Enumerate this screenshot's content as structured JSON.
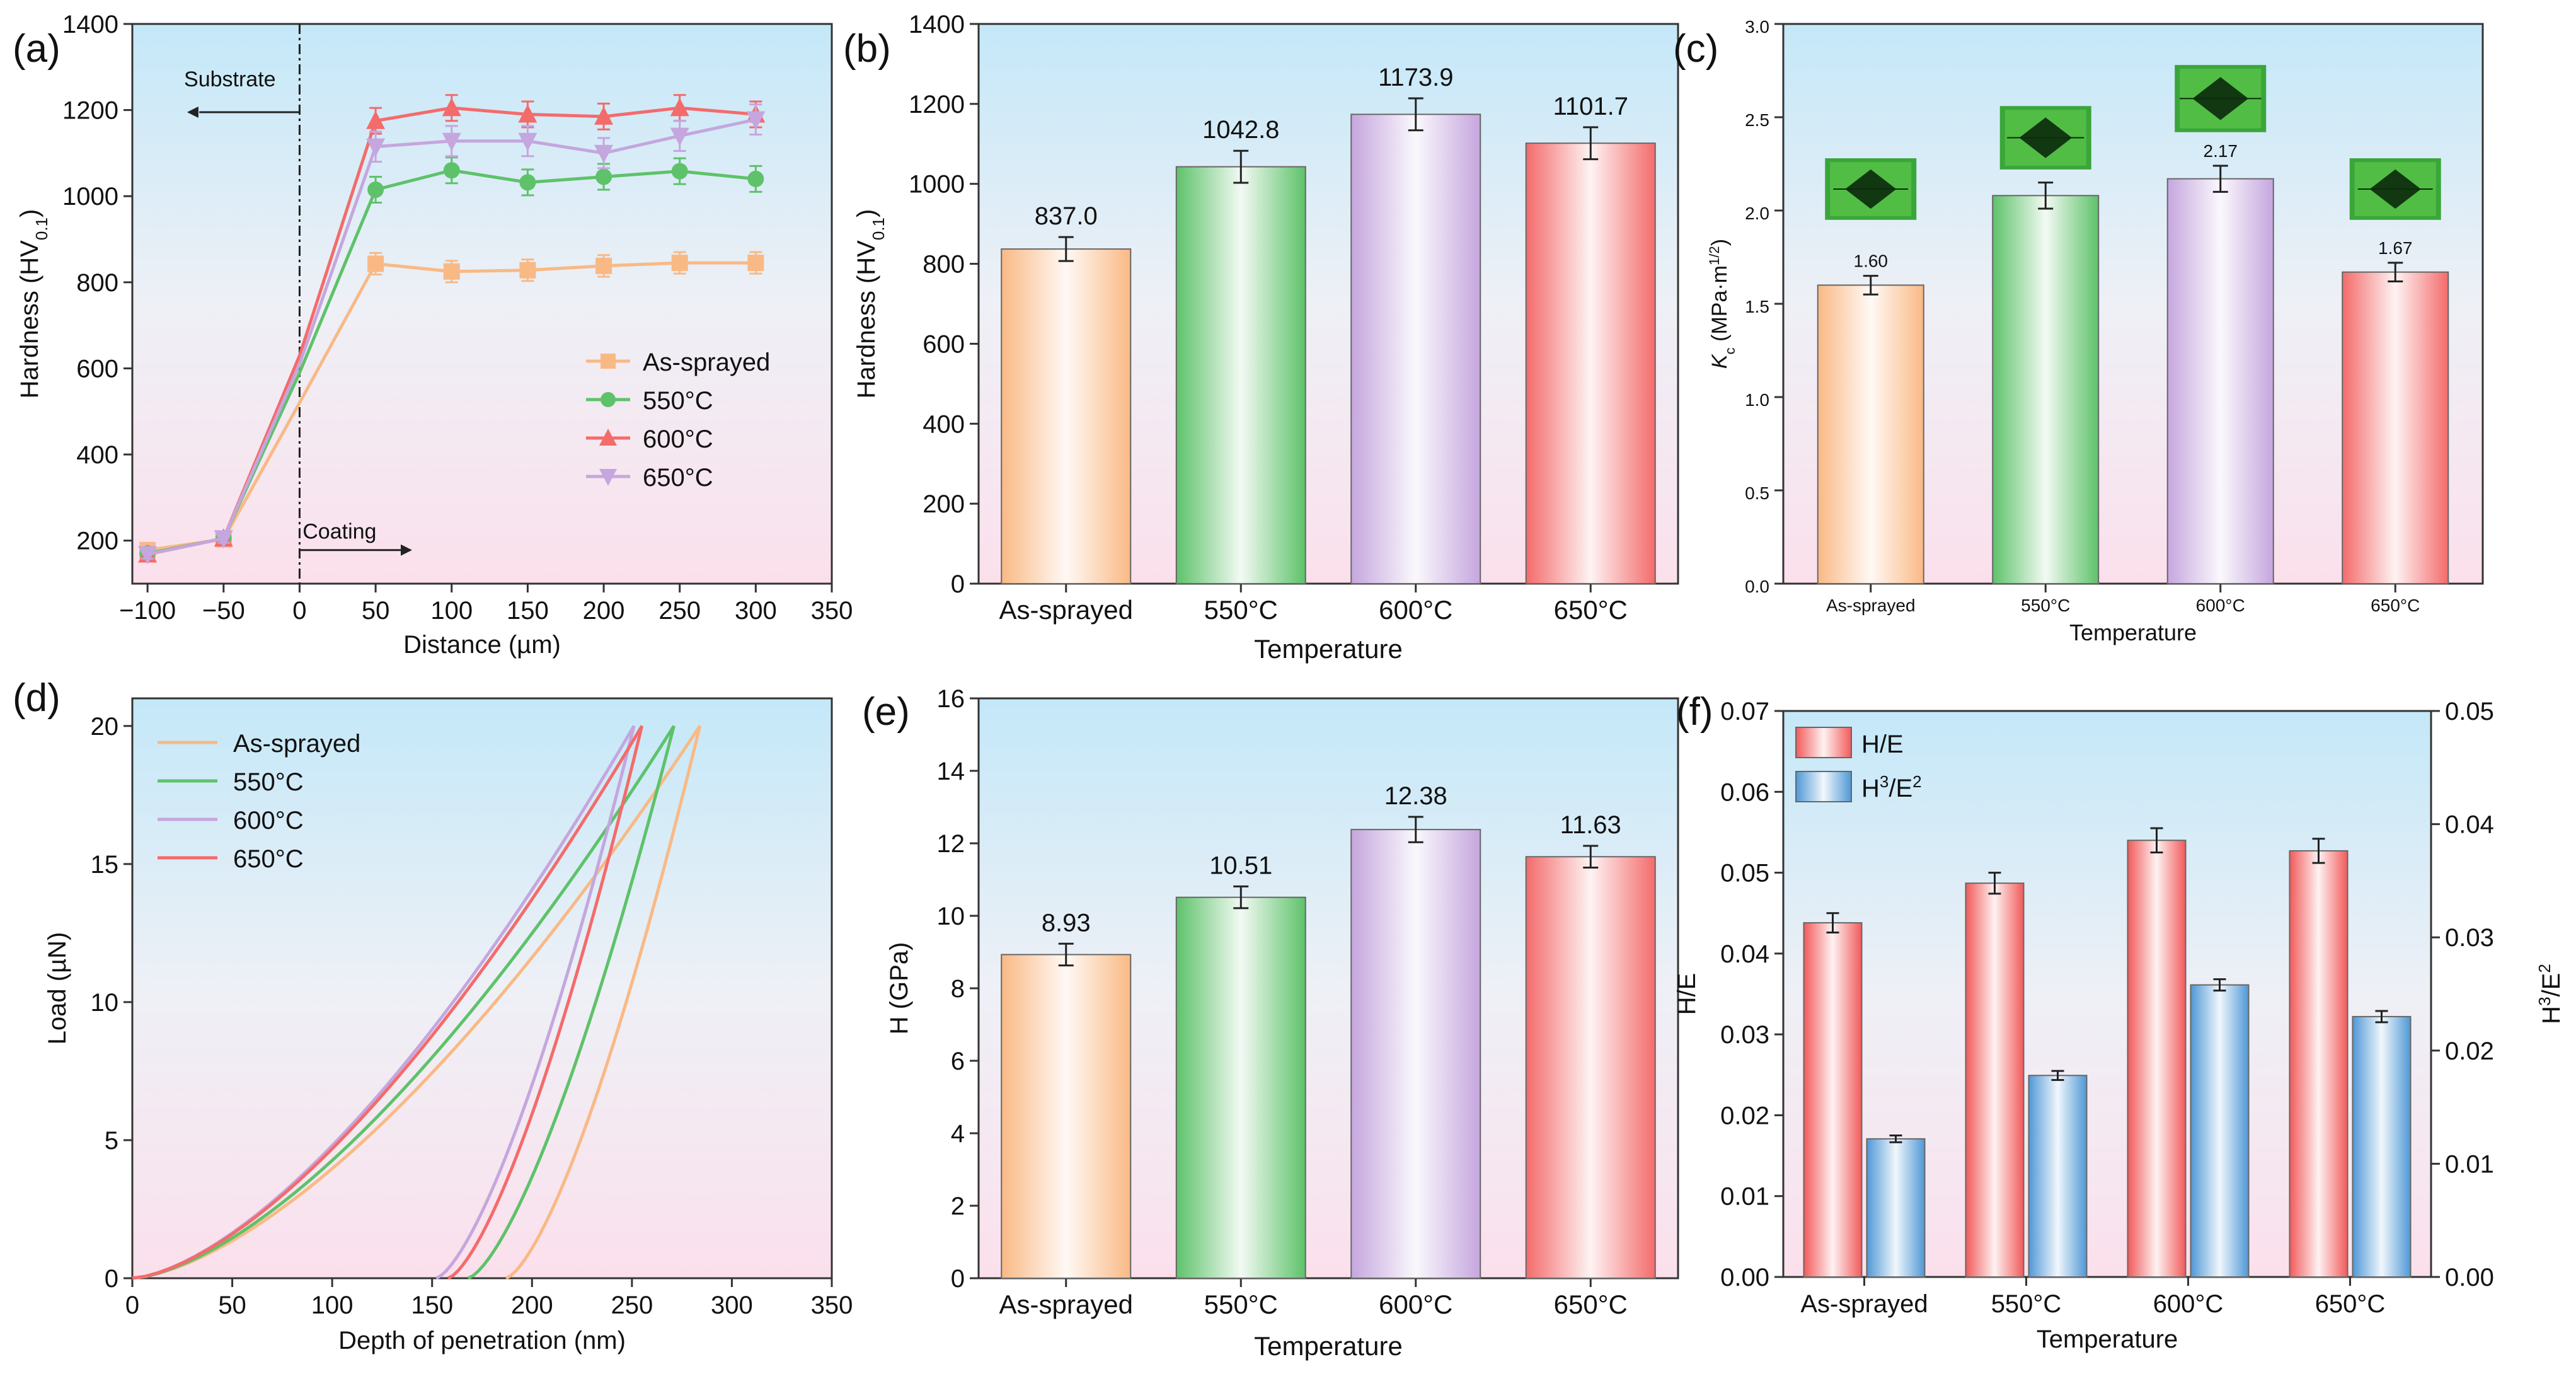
{
  "chart_data": [
    {
      "panel": "(a)",
      "type": "line",
      "xlabel": "Distance (µm)",
      "ylabel": "Hardness (HV0.1)",
      "ylabel_main": "Hardness (HV",
      "ylabel_sub": "0.1",
      "ylabel_tail": ")",
      "xlim": [
        -110,
        350
      ],
      "ylim": [
        100,
        1400
      ],
      "xticks": [
        -100,
        -50,
        0,
        50,
        100,
        150,
        200,
        250,
        300,
        350
      ],
      "xtick_labels": [
        "−100",
        "−50",
        "0",
        "50",
        "100",
        "150",
        "200",
        "250",
        "300",
        "350"
      ],
      "yticks": [
        200,
        400,
        600,
        800,
        1000,
        1200,
        1400
      ],
      "annotations": {
        "substrate": "Substrate",
        "coating": "Coating"
      },
      "x": [
        -100,
        -50,
        0,
        50,
        100,
        150,
        200,
        250,
        300
      ],
      "series": [
        {
          "name": "As-sprayed",
          "color": "#f9b985",
          "marker": "square",
          "values": [
            178,
            203,
            520,
            843,
            825,
            828,
            838,
            845,
            845
          ],
          "errors": [
            10,
            10,
            0,
            25,
            25,
            25,
            25,
            25,
            25
          ]
        },
        {
          "name": "550°C",
          "color": "#5ec26a",
          "marker": "circle",
          "values": [
            170,
            205,
            590,
            1015,
            1060,
            1032,
            1045,
            1058,
            1040
          ],
          "errors": [
            10,
            10,
            0,
            30,
            30,
            30,
            30,
            30,
            30
          ]
        },
        {
          "name": "600°C",
          "color": "#f46b6b",
          "marker": "triangle-up",
          "values": [
            168,
            205,
            630,
            1175,
            1205,
            1190,
            1185,
            1205,
            1190
          ],
          "errors": [
            10,
            10,
            0,
            30,
            30,
            30,
            30,
            30,
            30
          ]
        },
        {
          "name": "650°C",
          "color": "#c5a6de",
          "marker": "triangle-down",
          "values": [
            168,
            205,
            610,
            1115,
            1128,
            1128,
            1100,
            1140,
            1178
          ],
          "errors": [
            10,
            10,
            0,
            35,
            35,
            35,
            35,
            35,
            35
          ]
        }
      ]
    },
    {
      "panel": "(b)",
      "type": "bar",
      "xlabel": "Temperature",
      "ylabel": "Hardness (HV0.1)",
      "ylabel_main": "Hardness (HV",
      "ylabel_sub": "0.1",
      "ylabel_tail": ")",
      "categories": [
        "As-sprayed",
        "550°C",
        "600°C",
        "650°C"
      ],
      "values": [
        837.0,
        1042.8,
        1173.9,
        1101.7
      ],
      "value_labels": [
        "837.0",
        "1042.8",
        "1173.9",
        "1101.7"
      ],
      "errors": [
        30,
        40,
        40,
        40
      ],
      "ylim": [
        0,
        1400
      ],
      "yticks": [
        0,
        200,
        400,
        600,
        800,
        1000,
        1200,
        1400
      ]
    },
    {
      "panel": "(c)",
      "type": "bar",
      "xlabel": "Temperature",
      "ylabel": "Kc (MPa·m1/2)",
      "ylabel_k": "K",
      "ylabel_ksub": "c",
      "ylabel_unit": " (MPa·m",
      "ylabel_sup": "1/2",
      "ylabel_tail": ")",
      "categories": [
        "As-sprayed",
        "550°C",
        "600°C",
        "650°C"
      ],
      "values": [
        1.6,
        2.08,
        2.17,
        1.67
      ],
      "value_labels": [
        "1.60",
        "",
        "2.17",
        "1.67"
      ],
      "errors": [
        0.05,
        0.07,
        0.07,
        0.05
      ],
      "ylim": [
        0,
        3.0
      ],
      "yticks": [
        0.0,
        0.5,
        1.0,
        1.5,
        2.0,
        2.5,
        3.0
      ],
      "ytick_labels": [
        "0.0",
        "0.5",
        "1.0",
        "1.5",
        "2.0",
        "2.5",
        "3.0"
      ]
    },
    {
      "panel": "(d)",
      "type": "line",
      "xlabel": "Depth of penetration (nm)",
      "ylabel": "Load (µN)",
      "xlim": [
        0,
        350
      ],
      "ylim": [
        0,
        21
      ],
      "xticks": [
        0,
        50,
        100,
        150,
        200,
        250,
        300,
        350
      ],
      "yticks": [
        0,
        5,
        10,
        15,
        20
      ],
      "series": [
        {
          "name": "As-sprayed",
          "color": "#f9b985",
          "peak_depth": 284,
          "peak_load": 20,
          "residual_depth": 187
        },
        {
          "name": "550°C",
          "color": "#5ec26a",
          "peak_depth": 271,
          "peak_load": 20,
          "residual_depth": 168
        },
        {
          "name": "600°C",
          "color": "#c5a6de",
          "peak_depth": 251,
          "peak_load": 20,
          "residual_depth": 152
        },
        {
          "name": "650°C",
          "color": "#f46b6b",
          "peak_depth": 255,
          "peak_load": 20,
          "residual_depth": 158
        }
      ]
    },
    {
      "panel": "(e)",
      "type": "bar",
      "xlabel": "Temperature",
      "ylabel": "H (GPa)",
      "categories": [
        "As-sprayed",
        "550°C",
        "600°C",
        "650°C"
      ],
      "values": [
        8.93,
        10.51,
        12.38,
        11.63
      ],
      "value_labels": [
        "8.93",
        "10.51",
        "12.38",
        "11.63"
      ],
      "errors": [
        0.3,
        0.3,
        0.35,
        0.3
      ],
      "ylim": [
        0,
        16
      ],
      "yticks": [
        0,
        2,
        4,
        6,
        8,
        10,
        12,
        14,
        16
      ]
    },
    {
      "panel": "(f)",
      "type": "bar",
      "xlabel": "Temperature",
      "ylabel": "H/E",
      "ylabel_right": "H3/E2",
      "categories": [
        "As-sprayed",
        "550°C",
        "600°C",
        "650°C"
      ],
      "ylim": [
        0,
        0.07
      ],
      "yticks": [
        0.0,
        0.01,
        0.02,
        0.03,
        0.04,
        0.05,
        0.06,
        0.07
      ],
      "ytick_labels": [
        "0.00",
        "0.01",
        "0.02",
        "0.03",
        "0.04",
        "0.05",
        "0.06",
        "0.07"
      ],
      "ylim_right": [
        0,
        0.05
      ],
      "yticks_right": [
        0.0,
        0.01,
        0.02,
        0.03,
        0.04,
        0.05
      ],
      "ytick_labels_right": [
        "0.00",
        "0.01",
        "0.02",
        "0.03",
        "0.04",
        "0.05"
      ],
      "series": [
        {
          "name": "H/E",
          "axis": "left",
          "color": "#f25a5a",
          "values": [
            0.0438,
            0.0487,
            0.054,
            0.0527
          ],
          "errors": [
            0.0012,
            0.0013,
            0.0015,
            0.0015
          ]
        },
        {
          "name": "H3/E2",
          "axis": "right",
          "color": "#4f98d6",
          "values": [
            0.0122,
            0.0178,
            0.0258,
            0.023
          ],
          "errors": [
            0.0003,
            0.0004,
            0.0005,
            0.0005
          ]
        }
      ],
      "legend_he": "H/E",
      "legend_h3": "H",
      "legend_h3_sup": "3",
      "legend_h3_mid": "/E",
      "legend_h3_sup2": "2"
    }
  ]
}
